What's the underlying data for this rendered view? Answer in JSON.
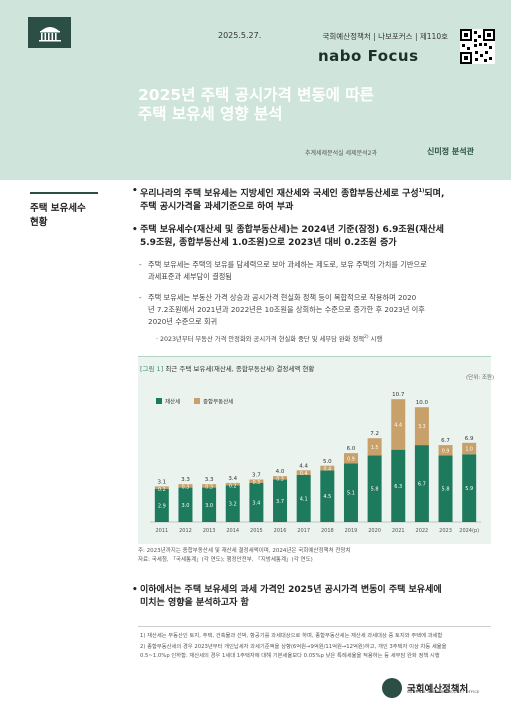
{
  "header": {
    "date": "2025.5.27.",
    "publication": "국회예산정책처 | 나보포커스 | 제110호",
    "brand_nabo": "nabo",
    "brand_focus": "Focus",
    "title_line1": "2025년 주택 공시가격 변동에 따른",
    "title_line2": "주택 보유세 영향 분석",
    "author_dept": "추계세제분석실 세제분석2과",
    "author_name": "신미정 분석관"
  },
  "section_label_line1": "주택 보유세수",
  "section_label_line2": "현황",
  "body": {
    "b1_line1": "우리나라의 주택 보유세는 지방세인 재산세와 국세인 종합부동산세로 구성",
    "b1_sup": "1)",
    "b1_line1_end": "되며,",
    "b1_line2": "주택 공시가격을 과세기준으로 하여 부과",
    "b2_line1": "주택 보유세수(재산세 및 종합부동산세)는 2024년 기준(잠정) 6.9조원(재산세",
    "b2_line2": "5.9조원, 종합부동산세 1.0조원)으로 2023년 대비 0.2조원 증가",
    "s1_line1": "주택 보유세는 주택의 보유를 담세력으로 보아 과세하는 제도로, 보유 주택의 가치를 기반으로",
    "s1_line2": "과세표준과 세부담이 결정됨",
    "s2_line1": "주택 보유세는 부동산 가격 상승과 공시가격 현실화 정책 등이 복합적으로 작용하며 2020",
    "s2_line2": "년 7.2조원에서 2021년과 2022년은 10조원을 상회하는 수준으로 증가한 후 2023년 이후",
    "s2_line3": "2020년 수준으로 회귀",
    "ss1": "· 2023년부터 부동산 가격 안정화와 공시가격 현실화 중단 및 세부담 완화 정책",
    "ss1_sup": "2)",
    "ss1_end": " 시행",
    "b3_line1": "이하에서는 주택 보유세의 과세 가격인 2025년 공시가격 변동이 주택 보유세에",
    "b3_line2": "미치는 영향을 분석하고자 함"
  },
  "chart_data": {
    "type": "bar",
    "figure_label": "[그림 1]",
    "title": "최근 주택 보유세(재산세, 종합부동산세) 결정세액 현황",
    "unit": "(단위: 조원)",
    "categories": [
      "2011",
      "2012",
      "2013",
      "2014",
      "2015",
      "2016",
      "2017",
      "2018",
      "2019",
      "2020",
      "2021",
      "2022",
      "2023",
      "2024(p)"
    ],
    "series": [
      {
        "name": "재산세",
        "color": "#1e7a5c",
        "values": [
          2.9,
          3.0,
          3.0,
          3.2,
          3.4,
          3.7,
          4.1,
          4.5,
          5.1,
          5.8,
          6.3,
          6.7,
          5.8,
          5.9
        ]
      },
      {
        "name": "종합부동산세",
        "color": "#c8a06a",
        "values": [
          0.2,
          0.3,
          0.3,
          0.2,
          0.3,
          0.3,
          0.4,
          0.4,
          0.9,
          1.5,
          4.4,
          3.3,
          0.9,
          1.0
        ]
      }
    ],
    "totals": [
      3.1,
      3.3,
      3.3,
      3.4,
      3.7,
      4.0,
      4.4,
      5.0,
      6.0,
      7.2,
      10.7,
      10.0,
      6.7,
      6.9
    ],
    "ylim": [
      0,
      11.5
    ],
    "stacked": true,
    "legend": "top-left"
  },
  "notes": {
    "n1": "주: 2023년까지는 종합부동산세 및 재산세 결정세액이며, 2024년은 국회예산정책처 전망치",
    "n2": "자료: 국세청, 「국세통계」(각 연도); 행정안전부, 「지방세통계」(각 연도)"
  },
  "footnotes": {
    "f1": "1) 재산세는 부동산인 토지, 주택, 건축물과 선박, 항공기를 과세대상으로 하며, 종합부동산세는 재산세 과세대상 중 토지와 주택에 과세함",
    "f2_line1": "2) 종합부동산세의 경우 2023년부터 개인납세자 과세기준액을 상향(6억원→9억원/11억원→12억원)하고, 개인 3주택자 이상 차등 세율을",
    "f2_line2": "0.5~1.0%p 인하함. 재산세의 경우 1세대 1주택자에 대해 기본세율보다 0.05%p 낮은 특례세율을 적용하는 등 세부담 완화 정책 시행"
  },
  "footer": {
    "org_kr": "국회예산정책처",
    "org_en": "NATIONAL ASSEMBLY BUDGET OFFICE"
  },
  "colors": {
    "header_bg": "#cfe5db",
    "dark_green": "#2c4f45",
    "bar_green": "#1e7a5c",
    "bar_gold": "#c8a06a"
  },
  "icons": {
    "logo": "assembly-building-icon",
    "qr": "qr-code-icon"
  }
}
